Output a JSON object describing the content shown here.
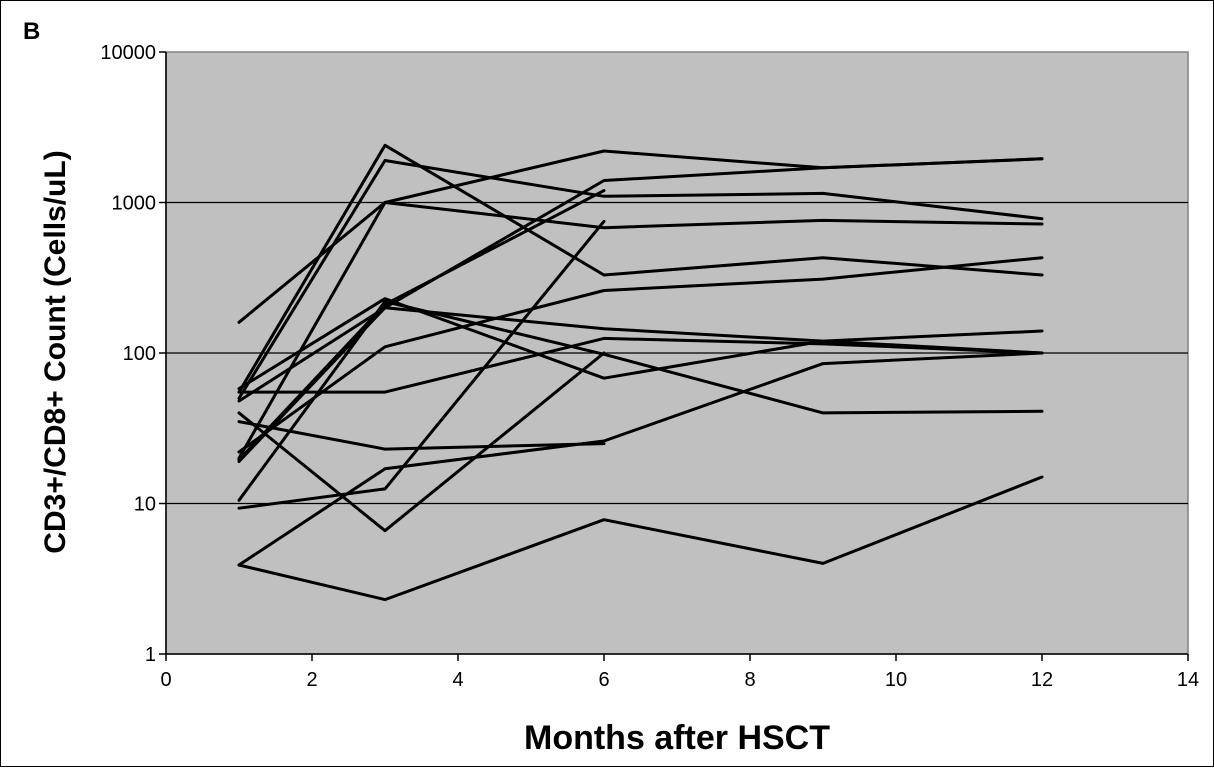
{
  "chart_data": {
    "type": "line",
    "panel_label": "B",
    "title": "",
    "xlabel": "Months after HSCT",
    "ylabel": "CD3+/CD8+ Count (Cells/uL)",
    "xlim": [
      0,
      14
    ],
    "ylim": [
      1,
      10000
    ],
    "y_scale": "log",
    "x_ticks": [
      0,
      2,
      4,
      6,
      8,
      10,
      12,
      14
    ],
    "x_tick_labels": [
      "0",
      "2",
      "4",
      "6",
      "8",
      "10",
      "12",
      "14"
    ],
    "y_ticks": [
      1,
      10,
      100,
      1000,
      10000
    ],
    "y_tick_labels": [
      "1",
      "10",
      "100",
      "1000",
      "10000"
    ],
    "grid": "horizontal major gridlines",
    "plot_background": "#c0c0c0",
    "line_color": "#000000",
    "legend": "none",
    "series": [
      {
        "x": [
          1,
          3,
          6,
          9,
          12
        ],
        "y": [
          160,
          1000,
          2200,
          1700,
          1950
        ]
      },
      {
        "x": [
          1,
          3,
          6,
          9,
          12
        ],
        "y": [
          55,
          2400,
          330,
          430,
          330
        ]
      },
      {
        "x": [
          1,
          3,
          6,
          9,
          12
        ],
        "y": [
          50,
          1900,
          1100,
          1150,
          780
        ]
      },
      {
        "x": [
          1,
          3,
          6,
          9,
          12
        ],
        "y": [
          20,
          1000,
          680,
          760,
          720
        ]
      },
      {
        "x": [
          1,
          3,
          6,
          9,
          12
        ],
        "y": [
          48,
          200,
          1400,
          1700,
          1950
        ]
      },
      {
        "x": [
          1,
          3,
          6,
          9,
          12
        ],
        "y": [
          58,
          230,
          68,
          120,
          140
        ]
      },
      {
        "x": [
          1,
          3,
          6,
          9,
          12
        ],
        "y": [
          19,
          200,
          145,
          120,
          100
        ]
      },
      {
        "x": [
          1,
          3,
          6,
          9,
          12
        ],
        "y": [
          22,
          110,
          260,
          310,
          430
        ]
      },
      {
        "x": [
          1,
          3,
          6,
          9,
          12
        ],
        "y": [
          55,
          55,
          125,
          115,
          100
        ]
      },
      {
        "x": [
          1,
          3,
          6,
          9,
          12
        ],
        "y": [
          10.5,
          220,
          98,
          40,
          41
        ]
      },
      {
        "x": [
          1,
          3,
          6,
          9,
          12
        ],
        "y": [
          3.9,
          2.3,
          7.8,
          4.0,
          15
        ]
      },
      {
        "x": [
          1,
          3,
          6,
          9,
          12
        ],
        "y": [
          3.9,
          17,
          26,
          85,
          100
        ]
      },
      {
        "x": [
          1,
          3,
          6
        ],
        "y": [
          40,
          6.6,
          100
        ]
      },
      {
        "x": [
          1,
          3,
          6
        ],
        "y": [
          9.3,
          12.5,
          750
        ]
      },
      {
        "x": [
          1,
          3,
          6
        ],
        "y": [
          35,
          23,
          25
        ]
      },
      {
        "x": [
          1,
          3,
          6
        ],
        "y": [
          19.5,
          210,
          1200
        ]
      }
    ]
  }
}
